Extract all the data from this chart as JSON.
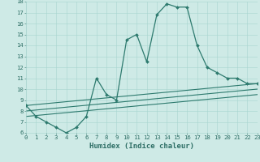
{
  "series": [
    {
      "x": [
        0,
        1,
        2,
        3,
        4,
        5,
        6,
        7,
        8,
        9,
        10,
        11,
        12,
        13,
        14,
        15,
        16,
        17,
        18,
        19,
        20,
        21,
        22,
        23
      ],
      "y": [
        8.5,
        7.5,
        7.0,
        6.5,
        6.0,
        6.5,
        7.5,
        11.0,
        9.5,
        9.0,
        14.5,
        15.0,
        12.5,
        16.8,
        17.8,
        17.5,
        17.5,
        14.0,
        12.0,
        11.5,
        11.0,
        11.0,
        10.5,
        10.5
      ],
      "color": "#2d7a6e",
      "marker": "D",
      "markersize": 2.0,
      "linewidth": 0.9
    },
    {
      "x": [
        0,
        23
      ],
      "y": [
        8.5,
        10.5
      ],
      "color": "#2d7a6e",
      "linewidth": 0.8
    },
    {
      "x": [
        0,
        23
      ],
      "y": [
        8.0,
        10.0
      ],
      "color": "#2d7a6e",
      "linewidth": 0.8
    },
    {
      "x": [
        0,
        23
      ],
      "y": [
        7.5,
        9.5
      ],
      "color": "#2d7a6e",
      "linewidth": 0.8
    }
  ],
  "xlim": [
    0,
    23
  ],
  "ylim": [
    6,
    18
  ],
  "xticks": [
    0,
    1,
    2,
    3,
    4,
    5,
    6,
    7,
    8,
    9,
    10,
    11,
    12,
    13,
    14,
    15,
    16,
    17,
    18,
    19,
    20,
    21,
    22,
    23
  ],
  "yticks": [
    6,
    7,
    8,
    9,
    10,
    11,
    12,
    13,
    14,
    15,
    16,
    17,
    18
  ],
  "xlabel": "Humidex (Indice chaleur)",
  "background_color": "#ceeae6",
  "grid_color": "#a8d5d0",
  "line_color": "#2d6e65",
  "tick_fontsize": 5.2,
  "label_fontsize": 6.5,
  "fig_width": 3.2,
  "fig_height": 2.0,
  "dpi": 100
}
